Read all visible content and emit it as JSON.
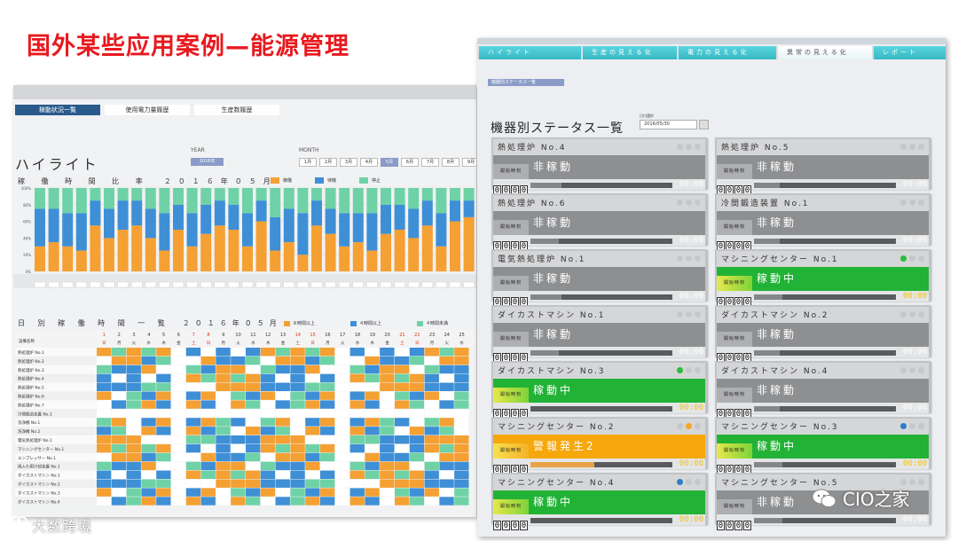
{
  "slide_title": "国外某些应用案例—能源管理",
  "left": {
    "nav": [
      {
        "label": "稼動状況一覧",
        "active": true
      },
      {
        "label": "使用電力量履歴",
        "active": false
      },
      {
        "label": "生産数履歴",
        "active": false
      }
    ],
    "highlight_title": "ハイライト",
    "year_label": "YEAR",
    "year_value": "2016年",
    "month_label": "MONTH",
    "months": [
      "1月",
      "2月",
      "3月",
      "4月",
      "5月",
      "6月",
      "7月",
      "8月",
      "9月"
    ],
    "active_month_index": 4,
    "utilization_title": "稼 働 時 間 比 率　２０１６年０５月",
    "legend": [
      {
        "label": "稼働",
        "color": "#f5a033"
      },
      {
        "label": "待機",
        "color": "#3e8fd6"
      },
      {
        "label": "停止",
        "color": "#6fd2a6"
      }
    ],
    "daily_title": "日 別 稼 働 時 間 一 覧　２０１６年０５月",
    "daily_legend": [
      {
        "label": "８時間以上",
        "color": "#f5a033"
      },
      {
        "label": "４時間以上",
        "color": "#3e8fd6"
      },
      {
        "label": "４時間未満",
        "color": "#6fd2a6"
      }
    ],
    "table_header_label": "設備名称",
    "days": [
      "1",
      "2",
      "3",
      "4",
      "5",
      "6",
      "7",
      "8",
      "9",
      "10",
      "11",
      "12",
      "13",
      "14",
      "15",
      "16",
      "17",
      "18",
      "19",
      "20",
      "21",
      "22",
      "23",
      "24",
      "25"
    ],
    "weekdays": [
      "日",
      "月",
      "火",
      "水",
      "木",
      "金",
      "土",
      "日",
      "月",
      "火",
      "水",
      "木",
      "金",
      "土",
      "日",
      "月",
      "火",
      "水",
      "木",
      "金",
      "土",
      "日",
      "月",
      "火",
      "水"
    ],
    "machines": [
      "熱処理炉 No.1",
      "熱処理炉 No.2",
      "熱処理炉 No.3",
      "熱処理炉 No.4",
      "熱処理炉 No.5",
      "熱処理炉 No.6",
      "熱処理炉 No.7",
      "冷間鍛造装置 No.1",
      "洗浄機 No.1",
      "洗浄機 No.2",
      "電気熱処理炉 No.1",
      "マシニングセンター No.1",
      "エンプレッサー No.1",
      "焼入れ用冷却装置 No.1",
      "ダイカストマシン No.1",
      "ダイカストマシン No.2",
      "ダイカストマシン No.3",
      "ダイカストマシン No.4"
    ]
  },
  "chart_data": {
    "type": "bar",
    "stacked": true,
    "orientation": "vertical",
    "title": "稼 働 時 間 比 率　２０１６年０５月",
    "series": [
      {
        "name": "稼働",
        "color": "#f5a033",
        "values": [
          30,
          35,
          30,
          25,
          55,
          40,
          50,
          55,
          40,
          25,
          50,
          30,
          45,
          55,
          50,
          30,
          60,
          25,
          35,
          20,
          55,
          45,
          30,
          35,
          25,
          45,
          50,
          40,
          55,
          30,
          60,
          65
        ]
      },
      {
        "name": "待機",
        "color": "#3e8fd6",
        "values": [
          45,
          40,
          40,
          45,
          30,
          35,
          35,
          30,
          35,
          45,
          30,
          40,
          35,
          30,
          30,
          40,
          25,
          40,
          40,
          50,
          30,
          30,
          40,
          35,
          45,
          35,
          30,
          35,
          30,
          40,
          25,
          20
        ]
      },
      {
        "name": "停止",
        "color": "#6fd2a6",
        "values": [
          25,
          25,
          30,
          30,
          15,
          25,
          15,
          15,
          25,
          30,
          20,
          30,
          20,
          15,
          20,
          30,
          15,
          35,
          25,
          30,
          15,
          25,
          30,
          30,
          30,
          20,
          20,
          25,
          15,
          30,
          15,
          15
        ]
      }
    ],
    "ylim": [
      0,
      100
    ]
  },
  "right": {
    "tabs": [
      {
        "label": "ハイライト",
        "active": false
      },
      {
        "label": "生産の見える化",
        "active": false
      },
      {
        "label": "電力の見える化",
        "active": false
      },
      {
        "label": "異常の見える化",
        "active": true
      },
      {
        "label": "レポート",
        "active": false
      }
    ],
    "badge": "機器別ステータス一覧",
    "title": "機器別ステータス一覧",
    "date_label": "日付選択",
    "date_value": "2016/05/30",
    "start_time_label": "開始時刻",
    "clock": "00:00",
    "machines": [
      {
        "name": "熱処理炉 No.4",
        "status": "非稼動",
        "state": "idle",
        "active_dot": "",
        "fill": 0.22
      },
      {
        "name": "熱処理炉 No.5",
        "status": "非稼動",
        "state": "idle",
        "active_dot": "",
        "fill": 0.18
      },
      {
        "name": "熱処理炉 No.6",
        "status": "非稼動",
        "state": "idle",
        "active_dot": "",
        "fill": 0.2
      },
      {
        "name": "冷間鍛造装置 No.1",
        "status": "非稼動",
        "state": "idle",
        "active_dot": "",
        "fill": 0.18
      },
      {
        "name": "電気熱処理炉 No.1",
        "status": "非稼動",
        "state": "idle",
        "active_dot": "",
        "fill": 0.22
      },
      {
        "name": "マシニングセンター No.1",
        "status": "稼動中",
        "state": "running",
        "active_dot": "green",
        "fill": 0.2
      },
      {
        "name": "ダイカストマシン No.1",
        "status": "非稼動",
        "state": "idle",
        "active_dot": "",
        "fill": 0.2
      },
      {
        "name": "ダイカストマシン No.2",
        "status": "非稼動",
        "state": "idle",
        "active_dot": "",
        "fill": 0.18
      },
      {
        "name": "ダイカストマシン No.3",
        "status": "稼動中",
        "state": "running",
        "active_dot": "green",
        "fill": 0.0
      },
      {
        "name": "ダイカストマシン No.4",
        "status": "非稼動",
        "state": "idle",
        "active_dot": "",
        "fill": 0.18
      },
      {
        "name": "マシニングセンター No.2",
        "status": "警報発生2",
        "state": "alarm",
        "active_dot": "orange",
        "fill": 0.45
      },
      {
        "name": "マシニングセンター No.3",
        "status": "稼動中",
        "state": "running",
        "active_dot": "blue",
        "fill": 0.2
      },
      {
        "name": "マシニングセンター No.4",
        "status": "稼動中",
        "state": "running",
        "active_dot": "blue",
        "fill": 0.0
      },
      {
        "name": "マシニングセンター No.5",
        "status": "非稼動",
        "state": "idle",
        "active_dot": "",
        "fill": 0.2
      }
    ]
  },
  "watermarks": {
    "left": "大数跨境",
    "right": "CIO之家"
  },
  "colors": {
    "title_red": "#e8191e",
    "running_green": "#22b236",
    "alarm_orange": "#f5a70c",
    "idle_gray": "#8e8f91",
    "tab_cyan": "#35b8c4"
  }
}
